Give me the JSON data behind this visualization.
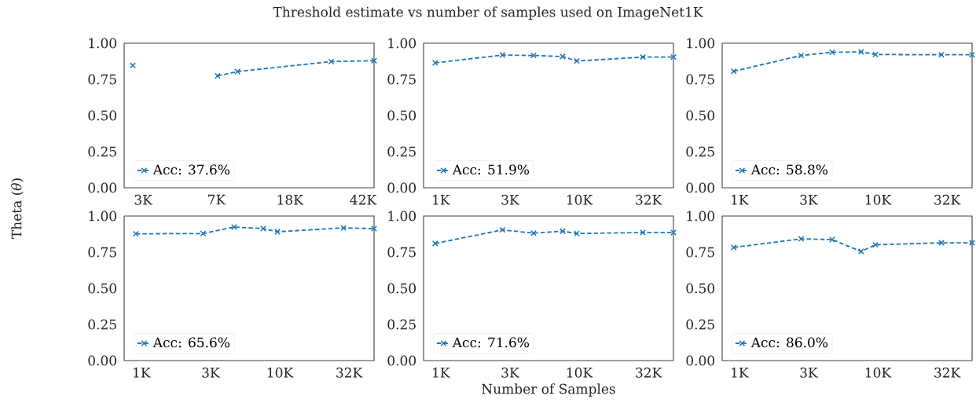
{
  "chart_data": [
    {
      "type": "line",
      "title": "Threshold estimate vs number of samples used on ImageNet1K",
      "ylabel": "Theta (*θ*)",
      "log": "x",
      "marker": "cross",
      "line_style": "dashed",
      "legend": "bottom left",
      "grid": false,
      "x": [
        2800,
        4700,
        7600,
        9600,
        29000,
        48000
      ],
      "xlim": [
        2530,
        48000
      ],
      "xticks": [
        {
          "value": 3162,
          "label": "3K"
        },
        {
          "value": 7499,
          "label": "7K"
        },
        {
          "value": 17783,
          "label": "18K"
        },
        {
          "value": 42170,
          "label": "42K"
        }
      ],
      "ylim": [
        0,
        1
      ],
      "yticks": [
        {
          "value": 0,
          "label": "0.00"
        },
        {
          "value": 0.25,
          "label": "0.25"
        },
        {
          "value": 0.5,
          "label": "0.50"
        },
        {
          "value": 0.75,
          "label": "0.75"
        },
        {
          "value": 1,
          "label": "1.00"
        }
      ],
      "series": [
        {
          "name": "Acc: 37.6%",
          "color": "#1f77b4",
          "values": [
            0.846,
            null,
            0.774,
            0.804,
            0.873,
            0.879
          ]
        }
      ]
    },
    {
      "type": "line",
      "log": "x",
      "marker": "cross",
      "line_style": "dashed",
      "legend": "bottom left",
      "grid": false,
      "x": [
        912,
        2794,
        4680,
        7590,
        9620,
        28840,
        48000
      ],
      "xlim": [
        752,
        48000
      ],
      "xticks": [
        {
          "value": 1000,
          "label": "1K"
        },
        {
          "value": 3162,
          "label": "3K"
        },
        {
          "value": 10000,
          "label": "10K"
        },
        {
          "value": 31623,
          "label": "32K"
        }
      ],
      "ylim": [
        0,
        1
      ],
      "yticks": [
        {
          "value": 0,
          "label": "0.00"
        },
        {
          "value": 0.25,
          "label": "0.25"
        },
        {
          "value": 0.5,
          "label": "0.50"
        },
        {
          "value": 0.75,
          "label": "0.75"
        },
        {
          "value": 1,
          "label": "1.00"
        }
      ],
      "series": [
        {
          "name": "Acc: 51.9%",
          "color": "#1f77b4",
          "values": [
            0.864,
            0.918,
            0.915,
            0.908,
            0.877,
            0.904,
            0.904
          ]
        }
      ]
    },
    {
      "type": "line",
      "log": "x",
      "marker": "cross",
      "line_style": "dashed",
      "legend": "bottom left",
      "grid": false,
      "x": [
        912,
        2794,
        4680,
        7590,
        9620,
        28840,
        48000
      ],
      "xlim": [
        752,
        48000
      ],
      "xticks": [
        {
          "value": 1000,
          "label": "1K"
        },
        {
          "value": 3162,
          "label": "3K"
        },
        {
          "value": 10000,
          "label": "10K"
        },
        {
          "value": 31623,
          "label": "32K"
        }
      ],
      "ylim": [
        0,
        1
      ],
      "yticks": [
        {
          "value": 0,
          "label": "0.00"
        },
        {
          "value": 0.25,
          "label": "0.25"
        },
        {
          "value": 0.5,
          "label": "0.50"
        },
        {
          "value": 0.75,
          "label": "0.75"
        },
        {
          "value": 1,
          "label": "1.00"
        }
      ],
      "series": [
        {
          "name": "Acc: 58.8%",
          "color": "#1f77b4",
          "values": [
            0.806,
            0.915,
            0.937,
            0.94,
            0.922,
            0.92,
            0.92
          ]
        }
      ]
    },
    {
      "type": "line",
      "log": "x",
      "marker": "cross",
      "line_style": "dashed",
      "legend": "bottom left",
      "grid": false,
      "x": [
        912,
        2794,
        4680,
        7590,
        9620,
        28840,
        48000
      ],
      "xlim": [
        752,
        48000
      ],
      "xticks": [
        {
          "value": 1000,
          "label": "1K"
        },
        {
          "value": 3162,
          "label": "3K"
        },
        {
          "value": 10000,
          "label": "10K"
        },
        {
          "value": 31623,
          "label": "32K"
        }
      ],
      "ylim": [
        0,
        1
      ],
      "yticks": [
        {
          "value": 0,
          "label": "0.00"
        },
        {
          "value": 0.25,
          "label": "0.25"
        },
        {
          "value": 0.5,
          "label": "0.50"
        },
        {
          "value": 0.75,
          "label": "0.75"
        },
        {
          "value": 1,
          "label": "1.00"
        }
      ],
      "series": [
        {
          "name": "Acc: 65.6%",
          "color": "#1f77b4",
          "values": [
            0.877,
            0.879,
            0.924,
            0.913,
            0.891,
            0.918,
            0.913
          ]
        }
      ]
    },
    {
      "type": "line",
      "xlabel": "Number of Samples",
      "log": "x",
      "marker": "cross",
      "line_style": "dashed",
      "legend": "bottom left",
      "grid": false,
      "x": [
        912,
        2794,
        4680,
        7590,
        9620,
        28840,
        48000
      ],
      "xlim": [
        752,
        48000
      ],
      "xticks": [
        {
          "value": 1000,
          "label": "1K"
        },
        {
          "value": 3162,
          "label": "3K"
        },
        {
          "value": 10000,
          "label": "10K"
        },
        {
          "value": 31623,
          "label": "32K"
        }
      ],
      "ylim": [
        0,
        1
      ],
      "yticks": [
        {
          "value": 0,
          "label": "0.00"
        },
        {
          "value": 0.25,
          "label": "0.25"
        },
        {
          "value": 0.5,
          "label": "0.50"
        },
        {
          "value": 0.75,
          "label": "0.75"
        },
        {
          "value": 1,
          "label": "1.00"
        }
      ],
      "series": [
        {
          "name": "Acc: 71.6%",
          "color": "#1f77b4",
          "values": [
            0.81,
            0.904,
            0.882,
            0.895,
            0.879,
            0.886,
            0.886
          ]
        }
      ]
    },
    {
      "type": "line",
      "log": "x",
      "marker": "cross",
      "line_style": "dashed",
      "legend": "bottom left",
      "grid": false,
      "x": [
        912,
        2794,
        4680,
        7590,
        9620,
        28840,
        48000
      ],
      "xlim": [
        752,
        48000
      ],
      "xticks": [
        {
          "value": 1000,
          "label": "1K"
        },
        {
          "value": 3162,
          "label": "3K"
        },
        {
          "value": 10000,
          "label": "10K"
        },
        {
          "value": 31623,
          "label": "32K"
        }
      ],
      "ylim": [
        0,
        1
      ],
      "yticks": [
        {
          "value": 0,
          "label": "0.00"
        },
        {
          "value": 0.25,
          "label": "0.25"
        },
        {
          "value": 0.5,
          "label": "0.50"
        },
        {
          "value": 0.75,
          "label": "0.75"
        },
        {
          "value": 1,
          "label": "1.00"
        }
      ],
      "series": [
        {
          "name": "Acc: 86.0%",
          "color": "#1f77b4",
          "values": [
            0.783,
            0.842,
            0.837,
            0.755,
            0.801,
            0.815,
            0.815
          ]
        }
      ]
    }
  ]
}
